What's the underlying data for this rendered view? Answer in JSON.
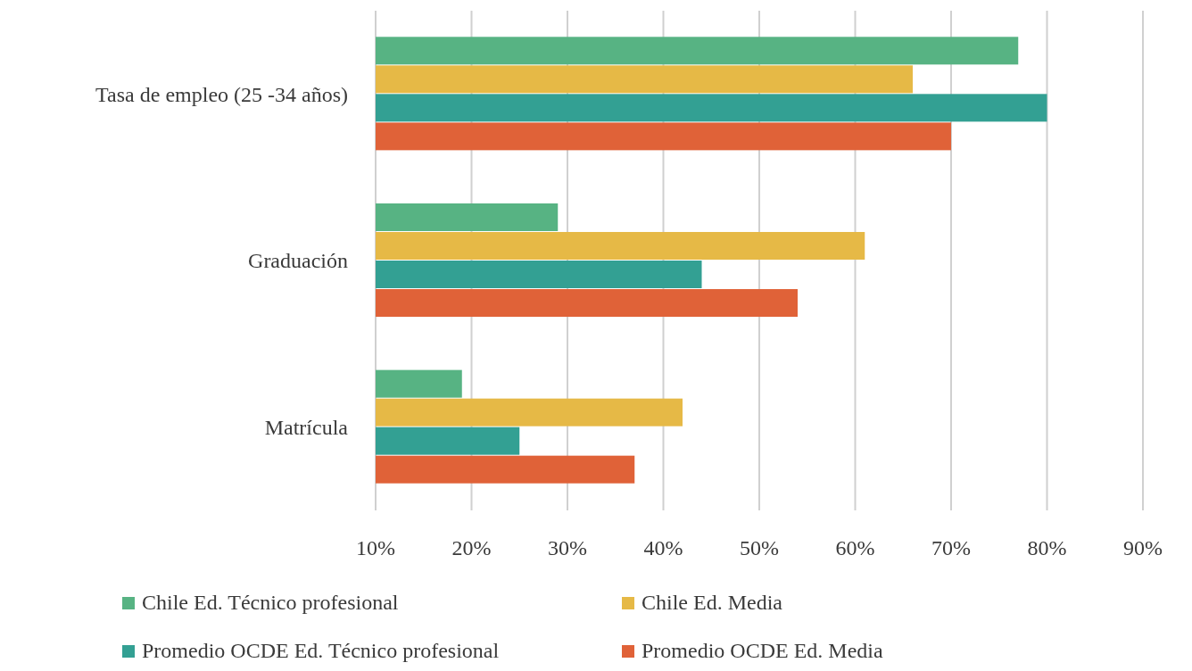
{
  "chart_data": {
    "type": "bar",
    "orientation": "horizontal",
    "categories": [
      "Tasa de empleo (25 -34 años)",
      "Graduación",
      "Matrícula"
    ],
    "series": [
      {
        "name": "Chile Ed. Técnico profesional",
        "color": "#57b383",
        "values": [
          77,
          29,
          19
        ]
      },
      {
        "name": "Chile Ed. Media",
        "color": "#e6b946",
        "values": [
          66,
          61,
          42
        ]
      },
      {
        "name": "Promedio OCDE Ed. Técnico profesional",
        "color": "#33a093",
        "values": [
          80,
          44,
          25
        ]
      },
      {
        "name": "Promedio OCDE Ed. Media",
        "color": "#e06238",
        "values": [
          70,
          54,
          37
        ]
      }
    ],
    "xlim": [
      10,
      90
    ],
    "xticks": [
      {
        "value": 10,
        "label": "10%"
      },
      {
        "value": 20,
        "label": "20%"
      },
      {
        "value": 30,
        "label": "30%"
      },
      {
        "value": 40,
        "label": "40%"
      },
      {
        "value": 50,
        "label": "50%"
      },
      {
        "value": 60,
        "label": "60%"
      },
      {
        "value": 70,
        "label": "70%"
      },
      {
        "value": 80,
        "label": "80%"
      },
      {
        "value": 90,
        "label": "90%"
      }
    ],
    "grid": "x",
    "legend": "bottom"
  }
}
